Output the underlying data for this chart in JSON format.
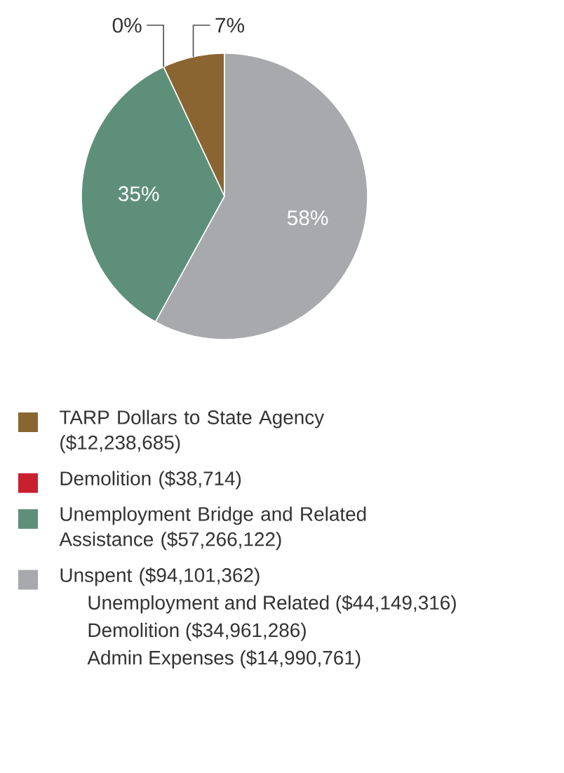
{
  "chart_data": {
    "type": "pie",
    "categories": [
      "TARP Dollars to State Agency ($12,238,685)",
      "Demolition ($38,714)",
      "Unemployment Bridge and Related Assistance ($57,266,122)",
      "Unspent ($94,101,362)"
    ],
    "values": [
      7,
      0,
      35,
      58
    ],
    "colors": [
      "#8a6532",
      "#c8202f",
      "#5e8f7b",
      "#a7a9ac"
    ],
    "value_labels": [
      "7%",
      "0%",
      "35%",
      "58%"
    ],
    "legend": "bottom",
    "annotations": [
      "Unemployment and Related ($44,149,316)",
      "Demolition ($34,961,286)",
      "Admin Expenses ($14,990,761)"
    ]
  }
}
